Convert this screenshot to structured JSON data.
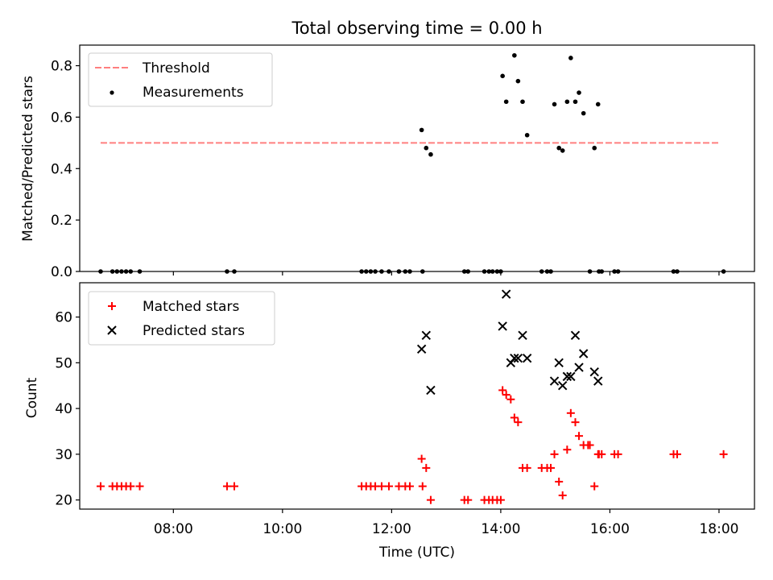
{
  "chart_data": [
    {
      "type": "scatter",
      "title": "Total observing time = 0.00 h",
      "xlabel": "",
      "ylabel": "Matched/Predicted stars",
      "xlim": [
        "06:17",
        "18:39"
      ],
      "ylim": [
        0.0,
        0.88
      ],
      "yticks": [
        0.0,
        0.2,
        0.4,
        0.6,
        0.8
      ],
      "ytick_labels": [
        "0.0",
        "0.2",
        "0.4",
        "0.6",
        "0.8"
      ],
      "grid": false,
      "legend_position": "upper left",
      "threshold": {
        "name": "Threshold",
        "value": 0.5,
        "x_start": "06:40",
        "x_end": "18:00",
        "color": "#ff7f7f",
        "style": "dashed"
      },
      "series": [
        {
          "name": "Measurements",
          "marker": "dot",
          "color": "#000000",
          "x": [
            "06:40",
            "06:53",
            "06:58",
            "07:03",
            "07:08",
            "07:13",
            "07:23",
            "08:59",
            "09:07",
            "11:27",
            "11:32",
            "11:37",
            "11:42",
            "11:49",
            "11:57",
            "12:08",
            "12:15",
            "12:20",
            "12:34",
            "13:20",
            "13:24",
            "13:42",
            "13:47",
            "13:51",
            "13:56",
            "14:00",
            "14:45",
            "14:51",
            "14:55",
            "15:38",
            "15:48",
            "15:51",
            "16:05",
            "16:09",
            "17:10",
            "17:14",
            "18:05",
            "12:33",
            "12:38",
            "12:43",
            "14:02",
            "14:06",
            "14:15",
            "14:19",
            "14:24",
            "14:29",
            "14:59",
            "15:04",
            "15:08",
            "15:13",
            "15:17",
            "15:22",
            "15:26",
            "15:31",
            "15:43",
            "15:47"
          ],
          "y": [
            0,
            0,
            0,
            0,
            0,
            0,
            0,
            0,
            0,
            0,
            0,
            0,
            0,
            0,
            0,
            0,
            0,
            0,
            0,
            0,
            0,
            0,
            0,
            0,
            0,
            0,
            0,
            0,
            0,
            0,
            0,
            0,
            0,
            0,
            0,
            0,
            0,
            0.55,
            0.48,
            0.455,
            0.76,
            0.66,
            0.84,
            0.74,
            0.66,
            0.53,
            0.65,
            0.48,
            0.47,
            0.66,
            0.83,
            0.66,
            0.695,
            0.615,
            0.48,
            0.65
          ]
        }
      ]
    },
    {
      "type": "scatter",
      "title": "",
      "xlabel": "Time (UTC)",
      "ylabel": "Count",
      "xlim": [
        "06:17",
        "18:39"
      ],
      "ylim": [
        18.0,
        67.5
      ],
      "yticks": [
        20,
        30,
        40,
        50,
        60
      ],
      "ytick_labels": [
        "20",
        "30",
        "40",
        "50",
        "60"
      ],
      "xticks": [
        "08:00",
        "10:00",
        "12:00",
        "14:00",
        "16:00",
        "18:00"
      ],
      "grid": false,
      "legend_position": "upper left",
      "series": [
        {
          "name": "Matched stars",
          "marker": "plus",
          "color": "#ff0000",
          "x": [
            "06:40",
            "06:53",
            "06:58",
            "07:03",
            "07:08",
            "07:13",
            "07:23",
            "08:59",
            "09:07",
            "11:27",
            "11:32",
            "11:37",
            "11:42",
            "11:49",
            "11:57",
            "12:08",
            "12:15",
            "12:20",
            "12:34",
            "13:20",
            "13:24",
            "13:42",
            "13:47",
            "13:51",
            "13:56",
            "14:00",
            "14:45",
            "14:51",
            "14:55",
            "15:38",
            "15:48",
            "15:51",
            "16:05",
            "16:09",
            "17:10",
            "17:14",
            "18:05",
            "12:33",
            "12:38",
            "12:43",
            "14:02",
            "14:06",
            "14:11",
            "14:15",
            "14:19",
            "14:24",
            "14:29",
            "14:59",
            "15:04",
            "15:08",
            "15:13",
            "15:17",
            "15:22",
            "15:26",
            "15:31",
            "15:36",
            "15:43",
            "15:47"
          ],
          "y": [
            23,
            23,
            23,
            23,
            23,
            23,
            23,
            23,
            23,
            23,
            23,
            23,
            23,
            23,
            23,
            23,
            23,
            23,
            23,
            20,
            20,
            20,
            20,
            20,
            20,
            20,
            27,
            27,
            27,
            32,
            30,
            30,
            30,
            30,
            30,
            30,
            30,
            29,
            27,
            20,
            44,
            43,
            42,
            38,
            37,
            27,
            27,
            30,
            24,
            21,
            31,
            39,
            37,
            34,
            32,
            32,
            23,
            30
          ]
        },
        {
          "name": "Predicted stars",
          "marker": "x",
          "color": "#000000",
          "x": [
            "12:33",
            "12:38",
            "12:43",
            "14:02",
            "14:06",
            "14:11",
            "14:15",
            "14:19",
            "14:24",
            "14:29",
            "14:59",
            "15:04",
            "15:08",
            "15:13",
            "15:17",
            "15:22",
            "15:26",
            "15:31",
            "15:43",
            "15:47"
          ],
          "y": [
            53,
            56,
            44,
            58,
            65,
            50,
            51,
            51,
            56,
            51,
            46,
            50,
            45,
            47,
            47,
            56,
            49,
            52,
            48,
            46
          ]
        }
      ]
    }
  ]
}
